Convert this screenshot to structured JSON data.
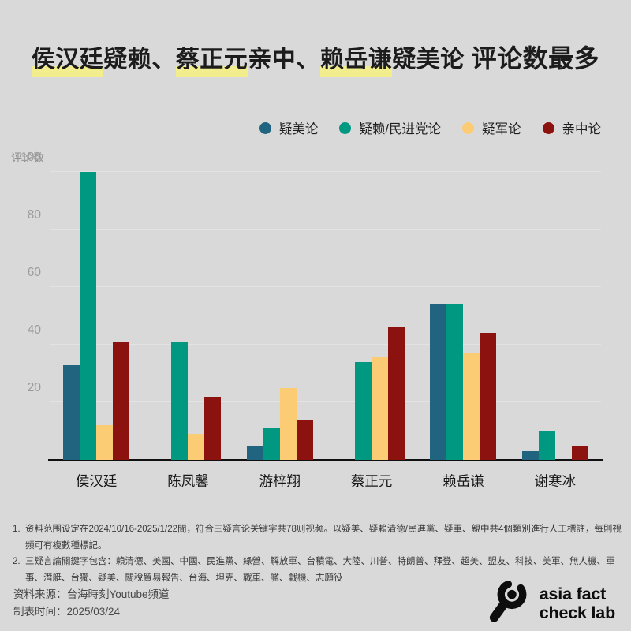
{
  "title": {
    "highlight_color": "#f2ee8e",
    "segments": [
      {
        "text": "侯汉廷",
        "highlight": true,
        "emphasis": false
      },
      {
        "text": "疑赖、",
        "highlight": false,
        "emphasis": false
      },
      {
        "text": "蔡正元",
        "highlight": true,
        "emphasis": false
      },
      {
        "text": "亲中、",
        "highlight": false,
        "emphasis": false
      },
      {
        "text": "赖岳谦",
        "highlight": true,
        "emphasis": false
      },
      {
        "text": "疑美论 ",
        "highlight": false,
        "emphasis": false
      },
      {
        "text": "评论数最多",
        "highlight": false,
        "emphasis": true
      }
    ]
  },
  "chart_data": {
    "type": "bar",
    "title": "侯汉廷疑赖、蔡正元亲中、赖岳谦疑美论 评论数最多",
    "ylabel": "评论数",
    "xlabel": "",
    "ylim": [
      0,
      100
    ],
    "yticks": [
      20,
      40,
      60,
      80,
      100
    ],
    "grid": true,
    "legend_position": "top-right",
    "background": "#d9d9d9",
    "categories": [
      "侯汉廷",
      "陈凤馨",
      "游梓翔",
      "蔡正元",
      "赖岳谦",
      "谢寒冰"
    ],
    "series": [
      {
        "name": "疑美论",
        "color": "#21647f",
        "values": [
          33,
          0,
          5,
          0,
          54,
          3
        ]
      },
      {
        "name": "疑赖/民进党论",
        "color": "#009880",
        "values": [
          100,
          41,
          11,
          34,
          54,
          10
        ]
      },
      {
        "name": "疑军论",
        "color": "#fbcc74",
        "values": [
          12,
          9,
          25,
          36,
          37,
          0
        ]
      },
      {
        "name": "亲中论",
        "color": "#8b120e",
        "values": [
          41,
          22,
          14,
          46,
          44,
          5
        ]
      }
    ]
  },
  "footnotes": [
    {
      "num": "1.",
      "text": "资料范围设定在2024/10/16-2025/1/22間，符合三疑言论关键字共78则视频。以疑美、疑賴清德/民進黨、疑軍、親中共4個類別進行人工標註，每則視頻可有複數種標記。"
    },
    {
      "num": "2.",
      "text": "三疑言論關鍵字包含：賴清德、美國、中國、民進黨、綠營、解放軍、台積電、大陸、川普、特朗普、拜登、超美、盟友、科技、美軍、無人機、軍事、潛艇、台獨、疑美、關稅貿易報告、台海、坦克、戰車、艦、戰機、志願役"
    }
  ],
  "source": {
    "line1": "资料来源：台海時刻Youtube頻道",
    "line2": "制表时间：2025/03/24"
  },
  "logo": {
    "line1": "asia fact",
    "line2": "check lab"
  }
}
